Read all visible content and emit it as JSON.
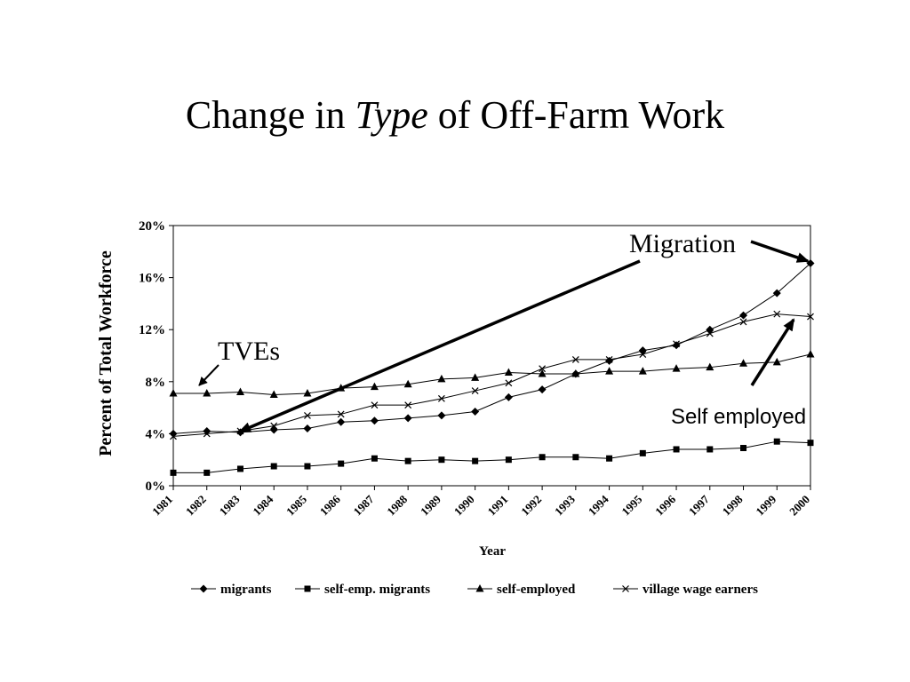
{
  "slide": {
    "title_part1": "Change in ",
    "title_italic": "Type",
    "title_part2": " of Off-Farm Work"
  },
  "chart_data": {
    "type": "line",
    "xlabel": "Year",
    "ylabel": "Percent of Total Workforce",
    "ylim": [
      0,
      20
    ],
    "yticks": [
      "0%",
      "4%",
      "8%",
      "12%",
      "16%",
      "20%"
    ],
    "grid": false,
    "legend_position": "bottom",
    "categories": [
      "1981",
      "1982",
      "1983",
      "1984",
      "1985",
      "1986",
      "1987",
      "1988",
      "1989",
      "1990",
      "1991",
      "1992",
      "1993",
      "1994",
      "1995",
      "1996",
      "1997",
      "1998",
      "1999",
      "2000"
    ],
    "series": [
      {
        "name": "migrants",
        "marker": "diamond",
        "values": [
          4.0,
          4.2,
          4.1,
          4.3,
          4.4,
          4.9,
          5.0,
          5.2,
          5.4,
          5.7,
          6.8,
          7.4,
          8.6,
          9.6,
          10.4,
          10.8,
          12.0,
          13.1,
          14.8,
          17.1
        ]
      },
      {
        "name": "self-emp. migrants",
        "marker": "square",
        "values": [
          1.0,
          1.0,
          1.3,
          1.5,
          1.5,
          1.7,
          2.1,
          1.9,
          2.0,
          1.9,
          2.0,
          2.2,
          2.2,
          2.1,
          2.5,
          2.8,
          2.8,
          2.9,
          3.4,
          3.3
        ]
      },
      {
        "name": "self-employed",
        "marker": "triangle",
        "values": [
          7.1,
          7.1,
          7.2,
          7.0,
          7.1,
          7.5,
          7.6,
          7.8,
          8.2,
          8.3,
          8.7,
          8.6,
          8.6,
          8.8,
          8.8,
          9.0,
          9.1,
          9.4,
          9.5,
          10.1
        ]
      },
      {
        "name": "village wage earners",
        "marker": "x",
        "values": [
          3.8,
          4.0,
          4.2,
          4.6,
          5.4,
          5.5,
          6.2,
          6.2,
          6.7,
          7.3,
          7.9,
          9.0,
          9.7,
          9.7,
          10.1,
          10.9,
          11.7,
          12.6,
          13.2,
          13.0
        ]
      }
    ],
    "annotations": [
      {
        "text": "Migration"
      },
      {
        "text": "TVEs"
      },
      {
        "text": "Self employed"
      }
    ]
  }
}
